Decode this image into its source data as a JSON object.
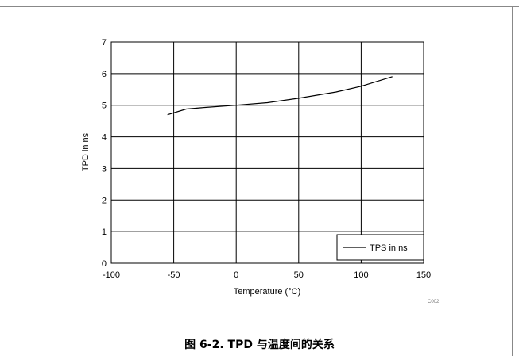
{
  "figure_code": "C002",
  "caption": "图 6-2. TPD 与温度间的关系",
  "chart_data": {
    "type": "line",
    "xlabel": "Temperature (°C)",
    "ylabel": "TPD in ns",
    "xlim": [
      -100,
      150
    ],
    "ylim": [
      0,
      7
    ],
    "xticks": [
      -100,
      -50,
      0,
      50,
      100,
      150
    ],
    "yticks": [
      0,
      1,
      2,
      3,
      4,
      5,
      6,
      7
    ],
    "grid": true,
    "legend_position": "bottom-right",
    "series": [
      {
        "name": "TPS in ns",
        "color": "#000000",
        "x": [
          -55,
          -40,
          -25,
          0,
          25,
          50,
          80,
          100,
          125
        ],
        "y": [
          4.7,
          4.88,
          4.93,
          5.0,
          5.08,
          5.22,
          5.42,
          5.6,
          5.9
        ]
      }
    ]
  }
}
